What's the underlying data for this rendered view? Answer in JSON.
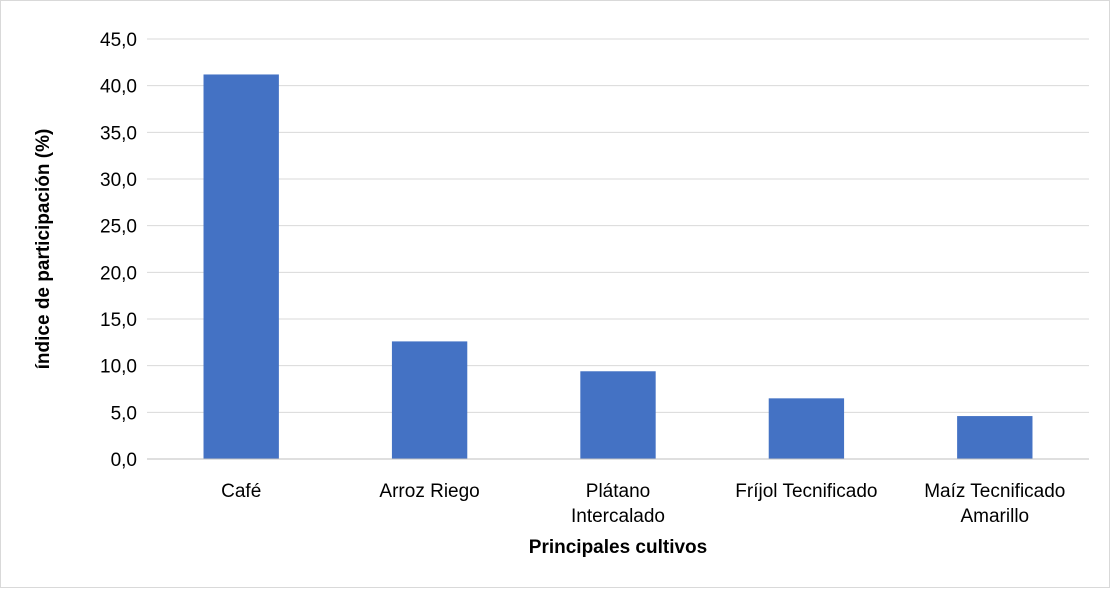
{
  "chart_data": {
    "type": "bar",
    "categories": [
      "Café",
      "Arroz Riego",
      "Plátano Intercalado",
      "Fríjol Tecnificado",
      "Maíz Tecnificado Amarillo"
    ],
    "category_lines": [
      [
        "Café"
      ],
      [
        "Arroz Riego"
      ],
      [
        "Plátano",
        "Intercalado"
      ],
      [
        "Fríjol Tecnificado"
      ],
      [
        "Maíz Tecnificado",
        "Amarillo"
      ]
    ],
    "values": [
      41.2,
      12.6,
      9.4,
      6.5,
      4.6
    ],
    "xlabel": "Principales cultivos",
    "ylabel": "índice de participación (%)",
    "ylim": [
      0,
      45
    ],
    "yticks": [
      "0,0",
      "5,0",
      "10,0",
      "15,0",
      "20,0",
      "25,0",
      "30,0",
      "35,0",
      "40,0",
      "45,0"
    ],
    "bar_color": "#4472c4",
    "grid": true,
    "legend": "none"
  }
}
